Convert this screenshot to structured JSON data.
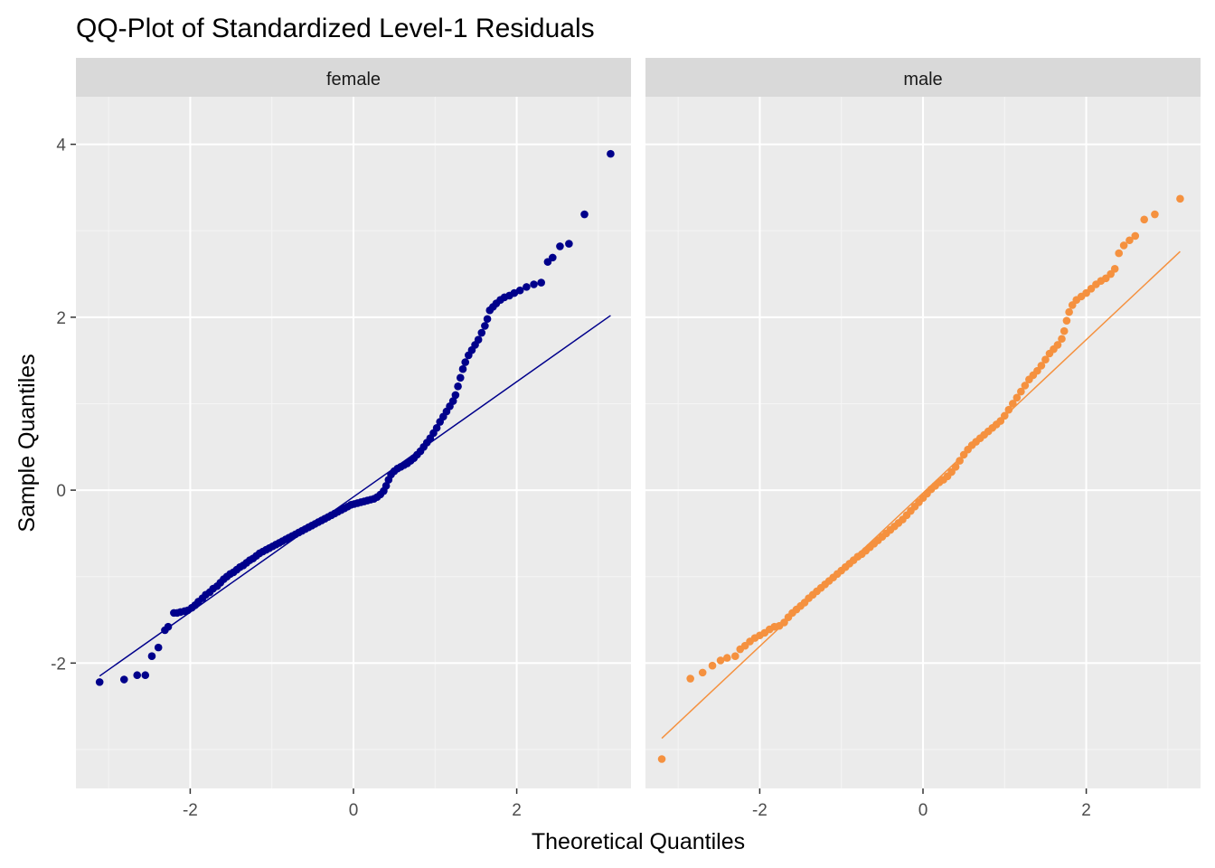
{
  "chart_data": {
    "type": "scatter",
    "title": "QQ-Plot of Standardized Level-1 Residuals",
    "xlabel": "Theoretical Quantiles",
    "ylabel": "Sample Quantiles",
    "xlim": [
      -3.4,
      3.4
    ],
    "ylim": [
      -3.45,
      4.55
    ],
    "x_ticks": [
      -2,
      0,
      2
    ],
    "y_ticks": [
      -2,
      0,
      2,
      4
    ],
    "grid": true,
    "legend": "none",
    "panels": [
      {
        "name": "female",
        "color": "#00008B",
        "reference_line": {
          "x": [
            -3.11,
            3.15
          ],
          "y": [
            -2.15,
            2.02
          ]
        },
        "points": [
          [
            -3.11,
            -2.22
          ],
          [
            -2.81,
            -2.19
          ],
          [
            -2.65,
            -2.14
          ],
          [
            -2.55,
            -2.14
          ],
          [
            -2.47,
            -1.92
          ],
          [
            -2.39,
            -1.82
          ],
          [
            -2.31,
            -1.62
          ],
          [
            -2.27,
            -1.58
          ],
          [
            -2.2,
            -1.42
          ],
          [
            -2.16,
            -1.42
          ],
          [
            -2.12,
            -1.41
          ],
          [
            -2.07,
            -1.4
          ],
          [
            -2.03,
            -1.39
          ],
          [
            -1.98,
            -1.36
          ],
          [
            -1.94,
            -1.33
          ],
          [
            -1.9,
            -1.29
          ],
          [
            -1.85,
            -1.25
          ],
          [
            -1.81,
            -1.21
          ],
          [
            -1.76,
            -1.18
          ],
          [
            -1.72,
            -1.14
          ],
          [
            -1.67,
            -1.11
          ],
          [
            -1.63,
            -1.07
          ],
          [
            -1.59,
            -1.03
          ],
          [
            -1.55,
            -1.0
          ],
          [
            -1.51,
            -0.97
          ],
          [
            -1.47,
            -0.95
          ],
          [
            -1.43,
            -0.92
          ],
          [
            -1.39,
            -0.89
          ],
          [
            -1.35,
            -0.87
          ],
          [
            -1.31,
            -0.84
          ],
          [
            -1.27,
            -0.81
          ],
          [
            -1.23,
            -0.79
          ],
          [
            -1.19,
            -0.76
          ],
          [
            -1.15,
            -0.73
          ],
          [
            -1.11,
            -0.71
          ],
          [
            -1.07,
            -0.69
          ],
          [
            -1.03,
            -0.67
          ],
          [
            -0.99,
            -0.65
          ],
          [
            -0.95,
            -0.63
          ],
          [
            -0.91,
            -0.61
          ],
          [
            -0.87,
            -0.59
          ],
          [
            -0.83,
            -0.57
          ],
          [
            -0.79,
            -0.55
          ],
          [
            -0.75,
            -0.53
          ],
          [
            -0.71,
            -0.51
          ],
          [
            -0.67,
            -0.49
          ],
          [
            -0.63,
            -0.47
          ],
          [
            -0.59,
            -0.45
          ],
          [
            -0.55,
            -0.43
          ],
          [
            -0.51,
            -0.41
          ],
          [
            -0.47,
            -0.39
          ],
          [
            -0.43,
            -0.37
          ],
          [
            -0.39,
            -0.35
          ],
          [
            -0.35,
            -0.33
          ],
          [
            -0.31,
            -0.31
          ],
          [
            -0.27,
            -0.29
          ],
          [
            -0.23,
            -0.27
          ],
          [
            -0.19,
            -0.25
          ],
          [
            -0.15,
            -0.23
          ],
          [
            -0.11,
            -0.21
          ],
          [
            -0.07,
            -0.19
          ],
          [
            -0.03,
            -0.17
          ],
          [
            0.01,
            -0.16
          ],
          [
            0.05,
            -0.15
          ],
          [
            0.09,
            -0.14
          ],
          [
            0.13,
            -0.13
          ],
          [
            0.17,
            -0.12
          ],
          [
            0.21,
            -0.11
          ],
          [
            0.25,
            -0.1
          ],
          [
            0.29,
            -0.08
          ],
          [
            0.33,
            -0.05
          ],
          [
            0.37,
            -0.01
          ],
          [
            0.4,
            0.05
          ],
          [
            0.43,
            0.12
          ],
          [
            0.46,
            0.18
          ],
          [
            0.5,
            0.22
          ],
          [
            0.54,
            0.25
          ],
          [
            0.58,
            0.27
          ],
          [
            0.62,
            0.29
          ],
          [
            0.66,
            0.31
          ],
          [
            0.7,
            0.34
          ],
          [
            0.74,
            0.37
          ],
          [
            0.78,
            0.41
          ],
          [
            0.82,
            0.45
          ],
          [
            0.86,
            0.5
          ],
          [
            0.9,
            0.55
          ],
          [
            0.94,
            0.6
          ],
          [
            0.98,
            0.66
          ],
          [
            1.02,
            0.72
          ],
          [
            1.06,
            0.79
          ],
          [
            1.1,
            0.85
          ],
          [
            1.14,
            0.91
          ],
          [
            1.18,
            0.97
          ],
          [
            1.22,
            1.03
          ],
          [
            1.25,
            1.1
          ],
          [
            1.28,
            1.2
          ],
          [
            1.31,
            1.3
          ],
          [
            1.34,
            1.4
          ],
          [
            1.37,
            1.48
          ],
          [
            1.41,
            1.56
          ],
          [
            1.45,
            1.62
          ],
          [
            1.49,
            1.68
          ],
          [
            1.53,
            1.74
          ],
          [
            1.57,
            1.82
          ],
          [
            1.61,
            1.9
          ],
          [
            1.64,
            1.98
          ],
          [
            1.67,
            2.08
          ],
          [
            1.71,
            2.12
          ],
          [
            1.75,
            2.16
          ],
          [
            1.8,
            2.2
          ],
          [
            1.85,
            2.23
          ],
          [
            1.91,
            2.25
          ],
          [
            1.97,
            2.28
          ],
          [
            2.04,
            2.31
          ],
          [
            2.12,
            2.35
          ],
          [
            2.21,
            2.38
          ],
          [
            2.3,
            2.4
          ],
          [
            2.38,
            2.64
          ],
          [
            2.44,
            2.69
          ],
          [
            2.53,
            2.82
          ],
          [
            2.64,
            2.85
          ],
          [
            2.83,
            3.19
          ],
          [
            3.15,
            3.89
          ]
        ]
      },
      {
        "name": "male",
        "color": "#F5913F",
        "reference_line": {
          "x": [
            -3.2,
            3.15
          ],
          "y": [
            -2.87,
            2.76
          ]
        },
        "points": [
          [
            -3.2,
            -3.11
          ],
          [
            -2.85,
            -2.18
          ],
          [
            -2.7,
            -2.11
          ],
          [
            -2.58,
            -2.03
          ],
          [
            -2.48,
            -1.97
          ],
          [
            -2.4,
            -1.94
          ],
          [
            -2.3,
            -1.92
          ],
          [
            -2.24,
            -1.84
          ],
          [
            -2.18,
            -1.8
          ],
          [
            -2.12,
            -1.75
          ],
          [
            -2.06,
            -1.71
          ],
          [
            -2.0,
            -1.68
          ],
          [
            -1.94,
            -1.65
          ],
          [
            -1.88,
            -1.61
          ],
          [
            -1.82,
            -1.58
          ],
          [
            -1.76,
            -1.57
          ],
          [
            -1.7,
            -1.53
          ],
          [
            -1.65,
            -1.47
          ],
          [
            -1.6,
            -1.42
          ],
          [
            -1.55,
            -1.38
          ],
          [
            -1.5,
            -1.34
          ],
          [
            -1.45,
            -1.3
          ],
          [
            -1.4,
            -1.25
          ],
          [
            -1.35,
            -1.21
          ],
          [
            -1.3,
            -1.17
          ],
          [
            -1.25,
            -1.13
          ],
          [
            -1.2,
            -1.09
          ],
          [
            -1.15,
            -1.05
          ],
          [
            -1.1,
            -1.01
          ],
          [
            -1.05,
            -0.97
          ],
          [
            -1.0,
            -0.93
          ],
          [
            -0.95,
            -0.89
          ],
          [
            -0.9,
            -0.85
          ],
          [
            -0.85,
            -0.81
          ],
          [
            -0.8,
            -0.77
          ],
          [
            -0.75,
            -0.74
          ],
          [
            -0.7,
            -0.7
          ],
          [
            -0.65,
            -0.66
          ],
          [
            -0.6,
            -0.62
          ],
          [
            -0.55,
            -0.58
          ],
          [
            -0.5,
            -0.54
          ],
          [
            -0.45,
            -0.5
          ],
          [
            -0.4,
            -0.46
          ],
          [
            -0.35,
            -0.42
          ],
          [
            -0.3,
            -0.38
          ],
          [
            -0.25,
            -0.34
          ],
          [
            -0.2,
            -0.29
          ],
          [
            -0.15,
            -0.24
          ],
          [
            -0.1,
            -0.19
          ],
          [
            -0.05,
            -0.14
          ],
          [
            0.0,
            -0.09
          ],
          [
            0.05,
            -0.04
          ],
          [
            0.1,
            0.01
          ],
          [
            0.15,
            0.05
          ],
          [
            0.2,
            0.09
          ],
          [
            0.25,
            0.12
          ],
          [
            0.3,
            0.16
          ],
          [
            0.35,
            0.21
          ],
          [
            0.4,
            0.27
          ],
          [
            0.45,
            0.34
          ],
          [
            0.5,
            0.41
          ],
          [
            0.55,
            0.47
          ],
          [
            0.6,
            0.52
          ],
          [
            0.65,
            0.56
          ],
          [
            0.7,
            0.6
          ],
          [
            0.75,
            0.64
          ],
          [
            0.8,
            0.68
          ],
          [
            0.85,
            0.72
          ],
          [
            0.9,
            0.76
          ],
          [
            0.95,
            0.8
          ],
          [
            1.0,
            0.86
          ],
          [
            1.05,
            0.93
          ],
          [
            1.1,
            1.0
          ],
          [
            1.15,
            1.07
          ],
          [
            1.2,
            1.14
          ],
          [
            1.25,
            1.21
          ],
          [
            1.3,
            1.28
          ],
          [
            1.35,
            1.33
          ],
          [
            1.4,
            1.38
          ],
          [
            1.45,
            1.44
          ],
          [
            1.5,
            1.51
          ],
          [
            1.55,
            1.58
          ],
          [
            1.6,
            1.63
          ],
          [
            1.65,
            1.68
          ],
          [
            1.7,
            1.75
          ],
          [
            1.73,
            1.84
          ],
          [
            1.76,
            1.96
          ],
          [
            1.79,
            2.06
          ],
          [
            1.83,
            2.14
          ],
          [
            1.88,
            2.2
          ],
          [
            1.94,
            2.24
          ],
          [
            2.0,
            2.28
          ],
          [
            2.06,
            2.33
          ],
          [
            2.12,
            2.38
          ],
          [
            2.18,
            2.42
          ],
          [
            2.24,
            2.45
          ],
          [
            2.3,
            2.5
          ],
          [
            2.35,
            2.56
          ],
          [
            2.4,
            2.74
          ],
          [
            2.46,
            2.83
          ],
          [
            2.53,
            2.89
          ],
          [
            2.6,
            2.94
          ],
          [
            2.71,
            3.13
          ],
          [
            2.84,
            3.19
          ],
          [
            3.15,
            3.37
          ]
        ]
      }
    ]
  }
}
